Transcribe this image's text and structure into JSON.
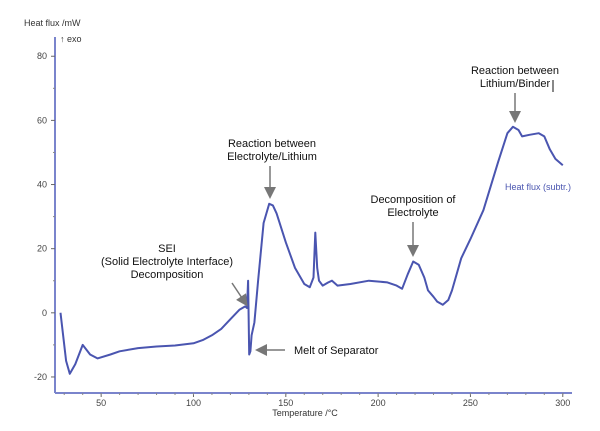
{
  "chart_data": {
    "type": "line",
    "ylabel": "Heat flux /mW",
    "exo_label": "↑ exo",
    "xlabel": "Temperature /°C",
    "xlim": [
      25,
      305
    ],
    "ylim": [
      -25,
      86
    ],
    "xticks": [
      50,
      100,
      150,
      200,
      250,
      300
    ],
    "yticks": [
      -20,
      0,
      20,
      40,
      60,
      80
    ],
    "grid": false,
    "line_color": "#4a55b0",
    "axis_color": "#7a84cc",
    "series": [
      {
        "name": "Heat flux (subtr.)",
        "x": [
          28,
          31,
          33,
          36,
          40,
          44,
          48,
          55,
          60,
          70,
          80,
          90,
          100,
          105,
          110,
          115,
          120,
          125,
          128,
          129,
          129.6,
          130.2,
          130.8,
          131.5,
          133,
          135,
          138,
          141,
          143,
          145,
          150,
          155,
          160,
          163,
          165,
          166,
          167,
          168,
          170,
          173,
          175,
          178,
          185,
          195,
          205,
          210,
          213,
          216,
          219,
          222,
          225,
          227,
          230,
          232,
          235,
          238,
          240,
          245,
          250,
          257,
          265,
          270,
          273,
          276,
          278,
          282,
          287,
          290,
          293,
          296,
          300
        ],
        "y": [
          0,
          -15,
          -19,
          -16,
          -10,
          -13,
          -14.2,
          -13,
          -12,
          -11,
          -10.5,
          -10.2,
          -9.5,
          -8.5,
          -7,
          -5,
          -2,
          1,
          2,
          1.5,
          10,
          -13,
          -12,
          -7,
          -3,
          10,
          28,
          34,
          33.5,
          31,
          22,
          14,
          9,
          8,
          11,
          25,
          14,
          10,
          8.5,
          9.5,
          10,
          8.5,
          9,
          10,
          9.5,
          8.5,
          7.5,
          12,
          16,
          15,
          11,
          7,
          5,
          3.5,
          2.5,
          4,
          7,
          17,
          23,
          32,
          47,
          56,
          58,
          57,
          55,
          55.5,
          56,
          55,
          51,
          48,
          46
        ]
      }
    ],
    "annotations": [
      {
        "lines": [
          "Reaction between",
          "Lithium/Binder"
        ],
        "target_x": 273,
        "target_y": 58
      },
      {
        "lines": [
          "Reaction between",
          "Electrolyte/Lithium"
        ],
        "target_x": 141,
        "target_y": 34
      },
      {
        "lines": [
          "Decomposition of",
          "Electrolyte"
        ],
        "target_x": 219,
        "target_y": 16
      },
      {
        "lines": [
          "SEI",
          "(Solid Electrolyte Interface)",
          "Decomposition"
        ],
        "target_x": 128,
        "target_y": 2
      },
      {
        "lines": [
          "Melt of Separator"
        ],
        "target_x": 131,
        "target_y": -12
      }
    ]
  }
}
